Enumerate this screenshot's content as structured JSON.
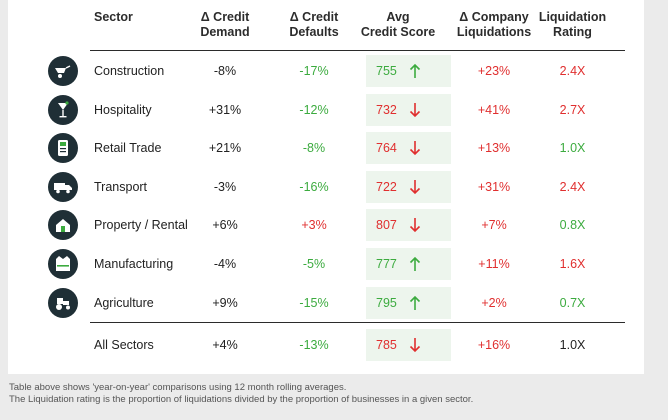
{
  "headers": {
    "sector": "Sector",
    "credit_demand": [
      "Δ Credit",
      "Demand"
    ],
    "credit_defaults": [
      "Δ Credit",
      "Defaults"
    ],
    "credit_score": [
      "Avg",
      "Credit Score"
    ],
    "liquidations": [
      "Δ Company",
      "Liquidations"
    ],
    "rating": [
      "Liquidation",
      "Rating"
    ]
  },
  "rows": [
    {
      "icon": "wheelbarrow-icon",
      "sector": "Construction",
      "demand": "-8%",
      "defaults": "-17%",
      "score": "755",
      "trend": "up",
      "liquidations": "+23%",
      "rating": "2.4X",
      "rating_tone": "red"
    },
    {
      "icon": "cocktail-glass-icon",
      "sector": "Hospitality",
      "demand": "+31%",
      "defaults": "-12%",
      "score": "732",
      "trend": "down",
      "liquidations": "+41%",
      "rating": "2.7X",
      "rating_tone": "red"
    },
    {
      "icon": "card-terminal-icon",
      "sector": "Retail Trade",
      "demand": "+21%",
      "defaults": "-8%",
      "score": "764",
      "trend": "down",
      "liquidations": "+13%",
      "rating": "1.0X",
      "rating_tone": "green"
    },
    {
      "icon": "truck-icon",
      "sector": "Transport",
      "demand": "-3%",
      "defaults": "-16%",
      "score": "722",
      "trend": "down",
      "liquidations": "+31%",
      "rating": "2.4X",
      "rating_tone": "red"
    },
    {
      "icon": "house-hand-icon",
      "sector": "Property / Rental",
      "demand": "+6%",
      "defaults": "+3%",
      "score": "807",
      "trend": "down",
      "liquidations": "+7%",
      "rating": "0.8X",
      "rating_tone": "green"
    },
    {
      "icon": "safety-vest-icon",
      "sector": "Manufacturing",
      "demand": "-4%",
      "defaults": "-5%",
      "score": "777",
      "trend": "up",
      "liquidations": "+11%",
      "rating": "1.6X",
      "rating_tone": "red"
    },
    {
      "icon": "tractor-icon",
      "sector": "Agriculture",
      "demand": "+9%",
      "defaults": "-15%",
      "score": "795",
      "trend": "up",
      "liquidations": "+2%",
      "rating": "0.7X",
      "rating_tone": "green"
    },
    {
      "icon": "",
      "sector": "All Sectors",
      "demand": "+4%",
      "defaults": "-13%",
      "score": "785",
      "trend": "down",
      "liquidations": "+16%",
      "rating": "1.0X",
      "rating_tone": "black"
    }
  ],
  "notes": [
    "Table above shows 'year-on-year' comparisons using 12 month rolling averages.",
    "The Liquidation rating is the proportion of liquidations divided by the proportion of businesses in a given sector."
  ],
  "colors": {
    "green": "#3cab3f",
    "red": "#e02f2f",
    "icon_bg": "#1f2f36",
    "score_bg": "#edf5ed"
  }
}
